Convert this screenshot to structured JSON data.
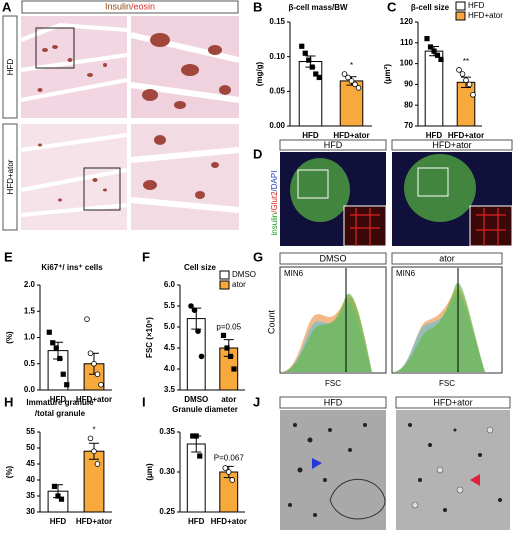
{
  "chart_data": [
    {
      "panel": "B",
      "type": "bar",
      "title": [
        "β-cell mass/BW"
      ],
      "ylabel": "(mg/g)",
      "categories": [
        "HFD",
        "HFD+ator"
      ],
      "values": [
        0.093,
        0.065
      ],
      "errors": [
        0.008,
        0.006
      ],
      "colors": [
        "#ffffff",
        "#f7a93b"
      ],
      "markers": [
        "square",
        "circle"
      ],
      "marker_fill": [
        true,
        false
      ],
      "points": [
        [
          0.115,
          0.105,
          0.095,
          0.085,
          0.075,
          0.07
        ],
        [
          0.075,
          0.07,
          0.065,
          0.06,
          0.055
        ]
      ],
      "ylim": [
        0,
        0.15
      ],
      "yticks": [
        {
          "value": 0,
          "label": "0.00"
        },
        {
          "value": 0.05,
          "label": "0.05"
        },
        {
          "value": 0.1,
          "label": "0.10"
        },
        {
          "value": 0.15,
          "label": "0.15"
        }
      ],
      "annotations": [
        {
          "text": "*",
          "x": "HFD+ator"
        }
      ],
      "legend": false
    },
    {
      "panel": "C",
      "type": "bar",
      "title": [
        "β-cell size"
      ],
      "ylabel": "(μm²)",
      "categories": [
        "HFD",
        "HFD+ator"
      ],
      "values": [
        106,
        91
      ],
      "errors": [
        2.2,
        2.5
      ],
      "colors": [
        "#ffffff",
        "#f7a93b"
      ],
      "markers": [
        "square",
        "circle"
      ],
      "marker_fill": [
        true,
        false
      ],
      "points": [
        [
          112,
          108,
          106,
          104,
          102
        ],
        [
          97,
          95,
          92,
          90,
          85
        ]
      ],
      "ylim": [
        70,
        120
      ],
      "yticks": [
        70,
        80,
        90,
        100,
        110,
        120
      ],
      "annotations": [
        {
          "text": "**",
          "x": "HFD+ator"
        }
      ],
      "legend": true
    },
    {
      "panel": "E",
      "type": "bar",
      "title": [
        "Ki67⁺/ ins⁺ cells"
      ],
      "ylabel": "(%)",
      "categories": [
        "HFD",
        "HFD+ator"
      ],
      "values": [
        0.75,
        0.5
      ],
      "errors": [
        0.16,
        0.2
      ],
      "colors": [
        "#ffffff",
        "#f7a93b"
      ],
      "markers": [
        "square",
        "circle"
      ],
      "marker_fill": [
        true,
        false
      ],
      "points": [
        [
          1.1,
          0.9,
          0.8,
          0.6,
          0.3,
          0.1
        ],
        [
          1.35,
          0.7,
          0.5,
          0.3,
          0.1
        ]
      ],
      "ylim": [
        0,
        2
      ],
      "yticks": [
        {
          "value": 0,
          "label": "0.0"
        },
        {
          "value": 0.5,
          "label": "0.5"
        },
        {
          "value": 1,
          "label": "1.0"
        },
        {
          "value": 1.5,
          "label": "1.5"
        },
        {
          "value": 2,
          "label": "2.0"
        }
      ],
      "annotations": [],
      "legend": false
    },
    {
      "panel": "F",
      "type": "bar",
      "title": [
        "Cell size"
      ],
      "ylabel": "FSC (×10⁵)",
      "categories": [
        "DMSO",
        "ator"
      ],
      "values": [
        5.2,
        4.5
      ],
      "errors": [
        0.25,
        0.2
      ],
      "colors": [
        "#ffffff",
        "#f7a93b"
      ],
      "markers": [
        "circle",
        "square"
      ],
      "marker_fill": [
        true,
        true
      ],
      "points": [
        [
          5.5,
          5.4,
          4.9,
          4.3
        ],
        [
          4.8,
          4.5,
          4.3,
          4.0
        ]
      ],
      "ylim": [
        3.5,
        6
      ],
      "yticks": [
        3.5,
        {
          "value": 4,
          "label": "4.0"
        },
        4.5,
        {
          "value": 5,
          "label": "5.0"
        },
        5.5,
        {
          "value": 6,
          "label": "6.0"
        }
      ],
      "annotations": [
        {
          "text": "p=0.05",
          "x": "ator"
        }
      ],
      "legend": true
    },
    {
      "panel": "H",
      "type": "bar",
      "title": [
        "Immature granule",
        "/total granule"
      ],
      "ylabel": "(%)",
      "categories": [
        "HFD",
        "HFD+ator"
      ],
      "values": [
        36.5,
        49
      ],
      "errors": [
        2,
        2.5
      ],
      "colors": [
        "#ffffff",
        "#f7a93b"
      ],
      "markers": [
        "square",
        "circle"
      ],
      "marker_fill": [
        true,
        false
      ],
      "points": [
        [
          38,
          35,
          34
        ],
        [
          53,
          49,
          45
        ]
      ],
      "ylim": [
        30,
        55
      ],
      "yticks": [
        30,
        35,
        40,
        45,
        50,
        55
      ],
      "annotations": [
        {
          "text": "*",
          "x": "HFD+ator"
        }
      ],
      "legend": false
    },
    {
      "panel": "I",
      "type": "bar",
      "title": [
        "Granule diameter"
      ],
      "ylabel": "(μm)",
      "categories": [
        "HFD",
        "HFD+ator"
      ],
      "values": [
        0.335,
        0.3
      ],
      "errors": [
        0.01,
        0.007
      ],
      "colors": [
        "#ffffff",
        "#f7a93b"
      ],
      "markers": [
        "square",
        "circle"
      ],
      "marker_fill": [
        true,
        false
      ],
      "points": [
        [
          0.345,
          0.345,
          0.32
        ],
        [
          0.305,
          0.3,
          0.29
        ]
      ],
      "ylim": [
        0.25,
        0.35
      ],
      "yticks": [
        0.25,
        {
          "value": 0.3,
          "label": "0.30"
        },
        0.35
      ],
      "annotations": [
        {
          "text": "P=0.067",
          "x": "HFD+ator"
        }
      ],
      "legend": false
    }
  ],
  "panels": {
    "A": {
      "letter": "A",
      "title": [
        "Insulin",
        "/eosin"
      ],
      "rows": [
        "HFD",
        "HFD+ator"
      ]
    },
    "D": {
      "letter": "D",
      "headers": [
        "HFD",
        "HFD+ator"
      ],
      "stain": [
        "insulin",
        "/Glut2",
        "/DAPI"
      ]
    },
    "G": {
      "letter": "G",
      "headers": [
        "DMSO",
        "ator"
      ],
      "cell_line": [
        "MIN6",
        "MIN6"
      ],
      "ylabel": "Count",
      "xlabel": [
        "FSC",
        "FSC"
      ]
    },
    "J": {
      "letter": "J",
      "headers": [
        "HFD",
        "HFD+ator"
      ]
    }
  }
}
